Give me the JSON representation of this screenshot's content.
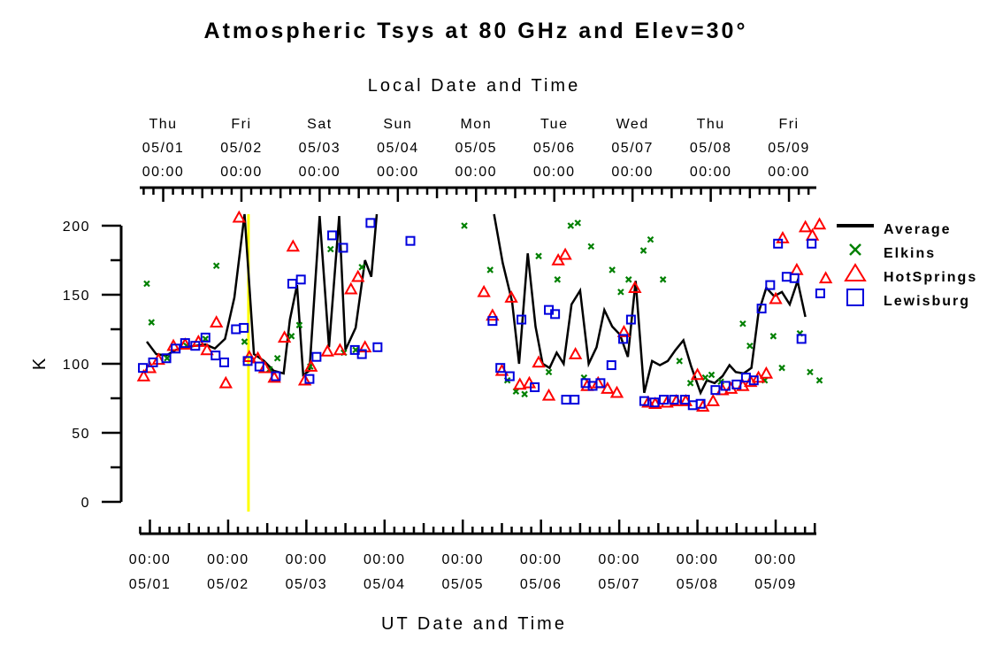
{
  "chart_data": {
    "type": "line",
    "title": "Atmospheric Tsys at 80 GHz and Elev=30°",
    "top_axis_label": "Local Date and Time",
    "xlabel": "UT Date and Time",
    "ylabel": "K",
    "ylim": [
      0,
      200
    ],
    "yticks": [
      0,
      50,
      100,
      150,
      200
    ],
    "x_unit": "UT day of May 2008 (fractional)",
    "xlim": [
      0.87,
      9.52
    ],
    "bottom_ticks": [
      {
        "x": 1,
        "time": "00:00",
        "date": "05/01"
      },
      {
        "x": 2,
        "time": "00:00",
        "date": "05/02"
      },
      {
        "x": 3,
        "time": "00:00",
        "date": "05/03"
      },
      {
        "x": 4,
        "time": "00:00",
        "date": "05/04"
      },
      {
        "x": 5,
        "time": "00:00",
        "date": "05/05"
      },
      {
        "x": 6,
        "time": "00:00",
        "date": "05/06"
      },
      {
        "x": 7,
        "time": "00:00",
        "date": "05/07"
      },
      {
        "x": 8,
        "time": "00:00",
        "date": "05/08"
      },
      {
        "x": 9,
        "time": "00:00",
        "date": "05/09"
      }
    ],
    "top_ticks": [
      {
        "x": 1.17,
        "day": "Thu",
        "date": "05/01",
        "time": "00:00"
      },
      {
        "x": 2.17,
        "day": "Fri",
        "date": "05/02",
        "time": "00:00"
      },
      {
        "x": 3.17,
        "day": "Sat",
        "date": "05/03",
        "time": "00:00"
      },
      {
        "x": 4.17,
        "day": "Sun",
        "date": "05/04",
        "time": "00:00"
      },
      {
        "x": 5.17,
        "day": "Mon",
        "date": "05/05",
        "time": "00:00"
      },
      {
        "x": 6.17,
        "day": "Tue",
        "date": "05/06",
        "time": "00:00"
      },
      {
        "x": 7.17,
        "day": "Wed",
        "date": "05/07",
        "time": "00:00"
      },
      {
        "x": 8.17,
        "day": "Thu",
        "date": "05/08",
        "time": "00:00"
      },
      {
        "x": 9.17,
        "day": "Fri",
        "date": "05/09",
        "time": "00:00"
      }
    ],
    "vertical_marker": {
      "x": 2.26,
      "color": "#ffff00"
    },
    "legend_position": "right",
    "series": [
      {
        "name": "Average",
        "style": "line",
        "color": "#000000",
        "segments": [
          [
            [
              0.96,
              116
            ],
            [
              1.08,
              107
            ],
            [
              1.21,
              106
            ],
            [
              1.33,
              110
            ],
            [
              1.46,
              112
            ],
            [
              1.58,
              113
            ],
            [
              1.71,
              114
            ],
            [
              1.83,
              111
            ],
            [
              1.96,
              118
            ],
            [
              2.08,
              148
            ],
            [
              2.21,
              210
            ],
            [
              2.33,
              107
            ],
            [
              2.46,
              102
            ],
            [
              2.58,
              95
            ],
            [
              2.71,
              93
            ],
            [
              2.79,
              132
            ],
            [
              2.88,
              157
            ],
            [
              2.96,
              92
            ],
            [
              3.04,
              95
            ],
            [
              3.17,
              207
            ],
            [
              3.29,
              112
            ],
            [
              3.42,
              207
            ],
            [
              3.5,
              110
            ],
            [
              3.63,
              126
            ],
            [
              3.75,
              175
            ],
            [
              3.83,
              163
            ],
            [
              3.9,
              210
            ]
          ],
          [
            [
              5.4,
              210
            ],
            [
              5.51,
              173
            ],
            [
              5.63,
              145
            ],
            [
              5.72,
              100
            ],
            [
              5.83,
              180
            ],
            [
              5.93,
              127
            ],
            [
              6.02,
              100
            ],
            [
              6.11,
              97
            ],
            [
              6.2,
              108
            ],
            [
              6.29,
              100
            ],
            [
              6.39,
              143
            ],
            [
              6.5,
              153
            ],
            [
              6.61,
              100
            ],
            [
              6.71,
              112
            ],
            [
              6.81,
              139
            ],
            [
              6.91,
              127
            ],
            [
              7.01,
              121
            ],
            [
              7.11,
              105
            ],
            [
              7.21,
              160
            ],
            [
              7.32,
              79
            ],
            [
              7.42,
              102
            ],
            [
              7.52,
              99
            ],
            [
              7.62,
              102
            ],
            [
              7.72,
              110
            ],
            [
              7.82,
              117
            ],
            [
              7.92,
              98
            ],
            [
              8.04,
              79
            ],
            [
              8.12,
              88
            ],
            [
              8.22,
              86
            ],
            [
              8.32,
              91
            ],
            [
              8.41,
              99
            ],
            [
              8.49,
              94
            ],
            [
              8.59,
              93
            ],
            [
              8.69,
              97
            ],
            [
              8.78,
              137
            ],
            [
              8.88,
              155
            ],
            [
              8.98,
              149
            ],
            [
              9.08,
              152
            ],
            [
              9.18,
              143
            ],
            [
              9.28,
              160
            ],
            [
              9.38,
              134
            ]
          ]
        ]
      },
      {
        "name": "Elkins",
        "style": "marker-x",
        "color": "#008000",
        "points": [
          [
            0.96,
            158
          ],
          [
            1.02,
            130
          ],
          [
            1.22,
            104
          ],
          [
            1.47,
            113
          ],
          [
            1.71,
            118
          ],
          [
            1.85,
            171
          ],
          [
            2.21,
            116
          ],
          [
            2.53,
            96
          ],
          [
            2.63,
            104
          ],
          [
            2.81,
            120
          ],
          [
            2.91,
            128
          ],
          [
            3.05,
            98
          ],
          [
            3.31,
            183
          ],
          [
            3.48,
            108
          ],
          [
            3.63,
            110
          ],
          [
            3.71,
            170
          ],
          [
            5.02,
            200
          ],
          [
            5.35,
            168
          ],
          [
            5.57,
            88
          ],
          [
            5.68,
            80
          ],
          [
            5.79,
            78
          ],
          [
            5.97,
            178
          ],
          [
            6.1,
            94
          ],
          [
            6.21,
            161
          ],
          [
            6.38,
            200
          ],
          [
            6.47,
            202
          ],
          [
            6.55,
            90
          ],
          [
            6.64,
            185
          ],
          [
            6.91,
            168
          ],
          [
            7.02,
            152
          ],
          [
            7.12,
            161
          ],
          [
            7.31,
            182
          ],
          [
            7.4,
            190
          ],
          [
            7.56,
            161
          ],
          [
            7.77,
            102
          ],
          [
            7.91,
            86
          ],
          [
            8.1,
            90
          ],
          [
            8.18,
            92
          ],
          [
            8.3,
            87
          ],
          [
            8.58,
            129
          ],
          [
            8.67,
            113
          ],
          [
            8.86,
            88
          ],
          [
            8.97,
            120
          ],
          [
            9.08,
            97
          ],
          [
            9.31,
            122
          ],
          [
            9.44,
            94
          ],
          [
            9.56,
            88
          ]
        ]
      },
      {
        "name": "HotSprings",
        "style": "marker-triangle",
        "color": "#ff0000",
        "points": [
          [
            0.92,
            91
          ],
          [
            1.0,
            97
          ],
          [
            1.11,
            103
          ],
          [
            1.3,
            113
          ],
          [
            1.45,
            114
          ],
          [
            1.62,
            116
          ],
          [
            1.73,
            110
          ],
          [
            1.85,
            130
          ],
          [
            1.97,
            86
          ],
          [
            2.14,
            206
          ],
          [
            2.27,
            105
          ],
          [
            2.38,
            104
          ],
          [
            2.47,
            97
          ],
          [
            2.59,
            90
          ],
          [
            2.72,
            119
          ],
          [
            2.83,
            185
          ],
          [
            2.98,
            88
          ],
          [
            3.06,
            98
          ],
          [
            3.27,
            109
          ],
          [
            3.43,
            110
          ],
          [
            3.57,
            154
          ],
          [
            3.66,
            163
          ],
          [
            3.75,
            112
          ],
          [
            5.27,
            152
          ],
          [
            5.38,
            135
          ],
          [
            5.5,
            95
          ],
          [
            5.62,
            148
          ],
          [
            5.73,
            85
          ],
          [
            5.85,
            86
          ],
          [
            5.97,
            101
          ],
          [
            6.1,
            77
          ],
          [
            6.22,
            175
          ],
          [
            6.31,
            179
          ],
          [
            6.44,
            107
          ],
          [
            6.59,
            84
          ],
          [
            6.73,
            86
          ],
          [
            6.85,
            82
          ],
          [
            6.97,
            79
          ],
          [
            7.06,
            123
          ],
          [
            7.2,
            155
          ],
          [
            7.37,
            72
          ],
          [
            7.46,
            71
          ],
          [
            7.61,
            72
          ],
          [
            7.73,
            73
          ],
          [
            7.85,
            73
          ],
          [
            8.0,
            92
          ],
          [
            8.07,
            69
          ],
          [
            8.2,
            73
          ],
          [
            8.32,
            81
          ],
          [
            8.43,
            82
          ],
          [
            8.58,
            84
          ],
          [
            8.68,
            87
          ],
          [
            8.78,
            90
          ],
          [
            8.88,
            93
          ],
          [
            9.0,
            147
          ],
          [
            9.09,
            191
          ],
          [
            9.27,
            168
          ],
          [
            9.38,
            199
          ],
          [
            9.47,
            193
          ],
          [
            9.56,
            201
          ],
          [
            9.64,
            162
          ]
        ]
      },
      {
        "name": "Lewisburg",
        "style": "marker-square",
        "color": "#0000dd",
        "points": [
          [
            0.91,
            97
          ],
          [
            1.04,
            101
          ],
          [
            1.21,
            104
          ],
          [
            1.33,
            111
          ],
          [
            1.45,
            115
          ],
          [
            1.58,
            113
          ],
          [
            1.71,
            119
          ],
          [
            1.84,
            106
          ],
          [
            1.95,
            101
          ],
          [
            2.1,
            125
          ],
          [
            2.2,
            126
          ],
          [
            2.25,
            102
          ],
          [
            2.4,
            98
          ],
          [
            2.61,
            91
          ],
          [
            2.82,
            158
          ],
          [
            2.93,
            161
          ],
          [
            3.04,
            89
          ],
          [
            3.13,
            105
          ],
          [
            3.33,
            193
          ],
          [
            3.47,
            184
          ],
          [
            3.62,
            110
          ],
          [
            3.71,
            107
          ],
          [
            3.82,
            202
          ],
          [
            3.91,
            112
          ],
          [
            4.33,
            189
          ],
          [
            5.38,
            131
          ],
          [
            5.48,
            97
          ],
          [
            5.6,
            91
          ],
          [
            5.75,
            132
          ],
          [
            5.92,
            83
          ],
          [
            6.1,
            139
          ],
          [
            6.18,
            136
          ],
          [
            6.32,
            74
          ],
          [
            6.43,
            74
          ],
          [
            6.57,
            86
          ],
          [
            6.66,
            84
          ],
          [
            6.76,
            86
          ],
          [
            6.9,
            99
          ],
          [
            7.05,
            118
          ],
          [
            7.15,
            132
          ],
          [
            7.32,
            73
          ],
          [
            7.45,
            72
          ],
          [
            7.57,
            74
          ],
          [
            7.7,
            74
          ],
          [
            7.84,
            74
          ],
          [
            7.94,
            70
          ],
          [
            8.04,
            71
          ],
          [
            8.23,
            81
          ],
          [
            8.36,
            84
          ],
          [
            8.5,
            85
          ],
          [
            8.62,
            90
          ],
          [
            8.72,
            88
          ],
          [
            8.82,
            140
          ],
          [
            8.93,
            157
          ],
          [
            9.03,
            187
          ],
          [
            9.14,
            163
          ],
          [
            9.24,
            162
          ],
          [
            9.33,
            118
          ],
          [
            9.46,
            187
          ],
          [
            9.57,
            151
          ]
        ]
      }
    ]
  }
}
